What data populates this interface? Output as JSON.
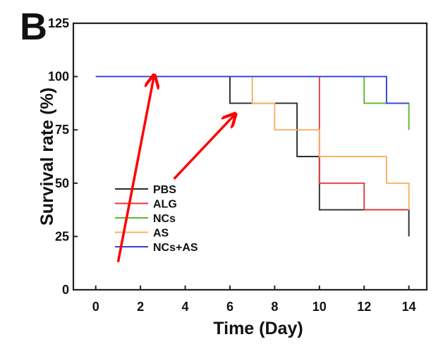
{
  "panel_label": "B",
  "chart_data": {
    "type": "line",
    "step": true,
    "xlabel": "Time (Day)",
    "ylabel": "Survival rate (%)",
    "xlim": [
      -1,
      14.8
    ],
    "ylim": [
      0,
      125
    ],
    "xticks": [
      "0",
      "2",
      "4",
      "6",
      "8",
      "10",
      "12",
      "14"
    ],
    "yticks": [
      "0",
      "25",
      "50",
      "75",
      "100",
      "125"
    ],
    "grid": false,
    "legend_position": "lower-left",
    "series": [
      {
        "name": "PBS",
        "color": "#2b2b2b",
        "x": [
          0,
          6,
          9,
          10,
          14,
          14
        ],
        "y": [
          100,
          87.5,
          62.5,
          37.5,
          37.5,
          25
        ]
      },
      {
        "name": "ALG",
        "color": "#e03a3e",
        "x": [
          0,
          9,
          10,
          12,
          14
        ],
        "y": [
          100,
          100,
          50,
          37.5,
          37.5
        ]
      },
      {
        "name": "NCs",
        "color": "#5cb82e",
        "x": [
          0,
          11,
          12,
          14
        ],
        "y": [
          100,
          100,
          87.5,
          75
        ]
      },
      {
        "name": "AS",
        "color": "#f5b064",
        "x": [
          0,
          6,
          7,
          8,
          10,
          13,
          14,
          14
        ],
        "y": [
          100,
          100,
          87.5,
          75,
          62.5,
          50,
          50,
          37.5
        ]
      },
      {
        "name": "NCs+AS",
        "color": "#2f45d6",
        "x": [
          0,
          13,
          14
        ],
        "y": [
          100,
          87.5,
          87.5
        ]
      }
    ],
    "annotations": [
      {
        "type": "arrow",
        "color": "#ff0000",
        "from": [
          1,
          13
        ],
        "to": [
          2.6,
          100
        ]
      },
      {
        "type": "arrow",
        "color": "#ff0000",
        "from": [
          3.5,
          52
        ],
        "to": [
          6.2,
          82
        ]
      }
    ]
  }
}
